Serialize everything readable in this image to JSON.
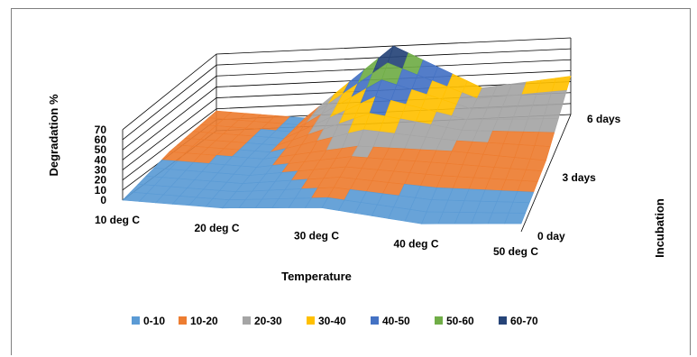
{
  "chart_data": {
    "type": "surface",
    "title": "",
    "xlabel": "Temperature",
    "ylabel": "Degradation %",
    "zlabel": "Incubation",
    "x_categories": [
      "10 deg C",
      "20 deg C",
      "30 deg C",
      "40 deg C",
      "50 deg C"
    ],
    "depth_categories": [
      "0 day",
      "3 days",
      "6 days"
    ],
    "ylim": [
      0,
      70
    ],
    "yticks": [
      "0",
      "10",
      "20",
      "30",
      "40",
      "50",
      "60",
      "70"
    ],
    "series": [
      {
        "name": "0 day",
        "values": [
          0,
          0,
          8,
          0,
          8
        ]
      },
      {
        "name": "3 days",
        "values": [
          13,
          8,
          22,
          19,
          12
        ]
      },
      {
        "name": "6 days",
        "values": [
          18,
          8,
          70,
          28,
          35
        ]
      }
    ],
    "legend": {
      "position": "bottom",
      "items": [
        {
          "label": "0-10",
          "color": "#5b9bd5"
        },
        {
          "label": "10-20",
          "color": "#ed7d31"
        },
        {
          "label": "20-30",
          "color": "#a5a5a5"
        },
        {
          "label": "30-40",
          "color": "#ffc000"
        },
        {
          "label": "40-50",
          "color": "#4472c4"
        },
        {
          "label": "50-60",
          "color": "#70ad47"
        },
        {
          "label": "60-70",
          "color": "#264478"
        }
      ]
    },
    "grid": true
  }
}
